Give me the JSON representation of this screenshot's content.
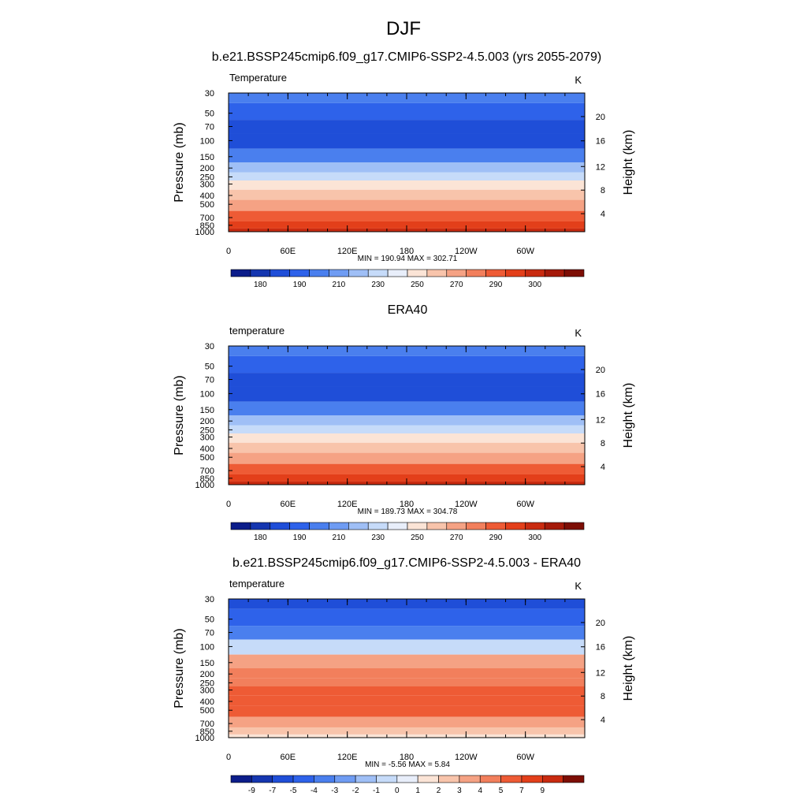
{
  "figure": {
    "season": "DJF"
  },
  "chart_data": [
    {
      "type": "heatmap",
      "title": "b.e21.BSSP245cmip6.f09_g17.CMIP6-SSP2-4.5.003 (yrs 2055-2079)",
      "subtitle": "Temperature",
      "units": "K",
      "ylabel": "Pressure (mb)",
      "ylabel_right": "Height (km)",
      "x_ticks": [
        "0",
        "60E",
        "120E",
        "180",
        "120W",
        "60W"
      ],
      "y_ticks": [
        "30",
        "50",
        "70",
        "100",
        "150",
        "200",
        "250",
        "300",
        "400",
        "500",
        "700",
        "850",
        "1000"
      ],
      "y_ticks_right": [
        "20",
        "16",
        "12",
        "8",
        "4"
      ],
      "stats": "MIN = 190.94  MAX = 302.71",
      "colorbar": {
        "labels": [
          "180",
          "190",
          "210",
          "230",
          "250",
          "270",
          "290",
          "300"
        ],
        "colors": [
          "#0c1d8a",
          "#1536b0",
          "#1f4ed8",
          "#2e62ea",
          "#4a7fee",
          "#6f9cf3",
          "#9fbff6",
          "#c6dbf9",
          "#e8eefa",
          "#fbe4d6",
          "#f8c4ab",
          "#f5a284",
          "#f27f5c",
          "#ee5b35",
          "#e33f1a",
          "#c92b10",
          "#a51a0a",
          "#7d0e05"
        ]
      },
      "profile": [
        {
          "p": "30",
          "band": 4
        },
        {
          "p": "50",
          "band": 3
        },
        {
          "p": "70",
          "band": 2
        },
        {
          "p": "100",
          "band": 2
        },
        {
          "p": "150",
          "band": 4
        },
        {
          "p": "200",
          "band": 6
        },
        {
          "p": "250",
          "band": 7
        },
        {
          "p": "300",
          "band": 9
        },
        {
          "p": "400",
          "band": 10
        },
        {
          "p": "500",
          "band": 11
        },
        {
          "p": "700",
          "band": 13
        },
        {
          "p": "850",
          "band": 14
        },
        {
          "p": "1000",
          "band": 15
        }
      ]
    },
    {
      "type": "heatmap",
      "title": "ERA40",
      "subtitle": "temperature",
      "units": "K",
      "ylabel": "Pressure (mb)",
      "ylabel_right": "Height (km)",
      "x_ticks": [
        "0",
        "60E",
        "120E",
        "180",
        "120W",
        "60W"
      ],
      "y_ticks": [
        "30",
        "50",
        "70",
        "100",
        "150",
        "200",
        "250",
        "300",
        "400",
        "500",
        "700",
        "850",
        "1000"
      ],
      "y_ticks_right": [
        "20",
        "16",
        "12",
        "8",
        "4"
      ],
      "stats": "MIN = 189.73  MAX = 304.78",
      "colorbar": {
        "labels": [
          "180",
          "190",
          "210",
          "230",
          "250",
          "270",
          "290",
          "300"
        ],
        "colors": [
          "#0c1d8a",
          "#1536b0",
          "#1f4ed8",
          "#2e62ea",
          "#4a7fee",
          "#6f9cf3",
          "#9fbff6",
          "#c6dbf9",
          "#e8eefa",
          "#fbe4d6",
          "#f8c4ab",
          "#f5a284",
          "#f27f5c",
          "#ee5b35",
          "#e33f1a",
          "#c92b10",
          "#a51a0a",
          "#7d0e05"
        ]
      },
      "profile": [
        {
          "p": "30",
          "band": 4
        },
        {
          "p": "50",
          "band": 3
        },
        {
          "p": "70",
          "band": 2
        },
        {
          "p": "100",
          "band": 2
        },
        {
          "p": "150",
          "band": 4
        },
        {
          "p": "200",
          "band": 6
        },
        {
          "p": "250",
          "band": 7
        },
        {
          "p": "300",
          "band": 9
        },
        {
          "p": "400",
          "band": 10
        },
        {
          "p": "500",
          "band": 11
        },
        {
          "p": "700",
          "band": 13
        },
        {
          "p": "850",
          "band": 14
        },
        {
          "p": "1000",
          "band": 15
        }
      ]
    },
    {
      "type": "heatmap",
      "title": "b.e21.BSSP245cmip6.f09_g17.CMIP6-SSP2-4.5.003 - ERA40",
      "subtitle": "temperature",
      "units": "K",
      "ylabel": "Pressure (mb)",
      "ylabel_right": "Height (km)",
      "x_ticks": [
        "0",
        "60E",
        "120E",
        "180",
        "120W",
        "60W"
      ],
      "y_ticks": [
        "30",
        "50",
        "70",
        "100",
        "150",
        "200",
        "250",
        "300",
        "400",
        "500",
        "700",
        "850",
        "1000"
      ],
      "y_ticks_right": [
        "20",
        "16",
        "12",
        "8",
        "4"
      ],
      "stats": "MIN = -5.56  MAX =  5.84",
      "colorbar": {
        "labels": [
          "-9",
          "-7",
          "-5",
          "-4",
          "-3",
          "-2",
          "-1",
          "0",
          "1",
          "2",
          "3",
          "4",
          "5",
          "7",
          "9"
        ],
        "colors": [
          "#0c1d8a",
          "#1536b0",
          "#1f4ed8",
          "#2e62ea",
          "#4a7fee",
          "#6f9cf3",
          "#9fbff6",
          "#c6dbf9",
          "#e8eefa",
          "#fbe4d6",
          "#f8c4ab",
          "#f5a284",
          "#f27f5c",
          "#ee5b35",
          "#e33f1a",
          "#c92b10",
          "#7d0e05"
        ]
      },
      "profile": [
        {
          "p": "30",
          "band": 2
        },
        {
          "p": "50",
          "band": 3
        },
        {
          "p": "70",
          "band": 4
        },
        {
          "p": "100",
          "band": 7
        },
        {
          "p": "150",
          "band": 11
        },
        {
          "p": "200",
          "band": 12
        },
        {
          "p": "250",
          "band": 12
        },
        {
          "p": "300",
          "band": 13
        },
        {
          "p": "400",
          "band": 13
        },
        {
          "p": "500",
          "band": 13
        },
        {
          "p": "700",
          "band": 11
        },
        {
          "p": "850",
          "band": 10
        },
        {
          "p": "1000",
          "band": 9
        }
      ]
    }
  ]
}
